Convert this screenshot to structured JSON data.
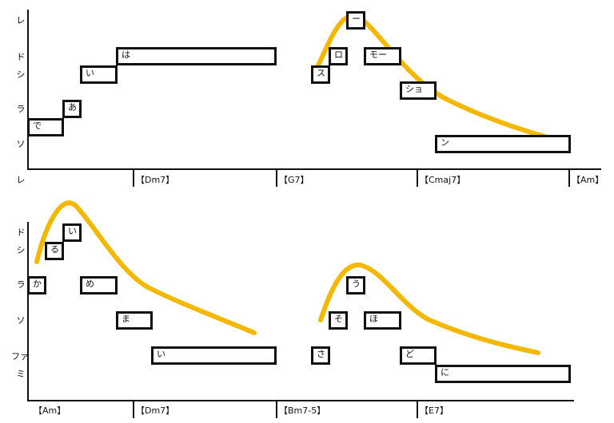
{
  "colors": {
    "curve": "#f5b800",
    "ink": "#111111",
    "background": "#ffffff"
  },
  "panel1": {
    "pitch_labels": [
      "レ",
      "ド",
      "シ",
      "ラ",
      "ソ",
      "レ"
    ],
    "chords": [
      "【Dm7】",
      "【G7】",
      "【Cmaj7】",
      "【Am】"
    ],
    "notes": [
      "で",
      "あ",
      "い",
      "は",
      "ス",
      "ロ",
      "ー",
      "モー",
      "ショ",
      "ン"
    ]
  },
  "panel2": {
    "pitch_labels": [
      "ド",
      "シ",
      "ラ",
      "ソ",
      "ファ",
      "ミ"
    ],
    "chords": [
      "【Am】",
      "【Dm7】",
      "【Bm7-5】",
      "【E7】"
    ],
    "notes": [
      "か",
      "る",
      "い",
      "め",
      "ま",
      "い",
      "さ",
      "そ",
      "う",
      "ほ",
      "ど",
      "に"
    ]
  }
}
